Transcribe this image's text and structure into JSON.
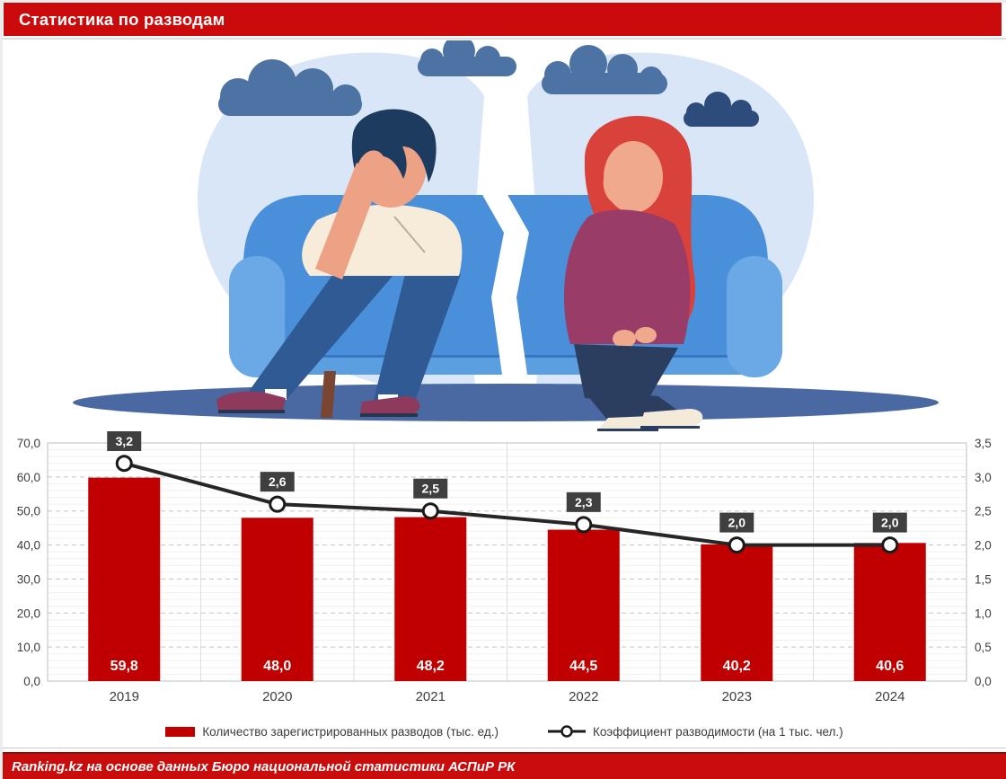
{
  "header": {
    "title": "Статистика по разводам"
  },
  "illustration": {
    "icons": [
      "broken-heart-icon",
      "cloud-icon",
      "couch-icon",
      "sad-man-icon",
      "sad-woman-icon"
    ]
  },
  "chart_data": {
    "type": "bar",
    "subtype": "combo-bar-line",
    "categories": [
      "2019",
      "2020",
      "2021",
      "2022",
      "2023",
      "2024"
    ],
    "series": [
      {
        "name": "Количество зарегистрированных разводов (тыс. ед.)",
        "type": "bar",
        "axis": "left",
        "values": [
          59.8,
          48.0,
          48.2,
          44.5,
          40.2,
          40.6
        ],
        "labels": [
          "59,8",
          "48,0",
          "48,2",
          "44,5",
          "40,2",
          "40,6"
        ],
        "color": "#c00000"
      },
      {
        "name": "Коэффициент разводимости (на 1 тыс. чел.)",
        "type": "line",
        "axis": "right",
        "values": [
          3.2,
          2.6,
          2.5,
          2.3,
          2.0,
          2.0
        ],
        "labels": [
          "3,2",
          "2,6",
          "2,5",
          "2,3",
          "2,0",
          "2,0"
        ],
        "color": "#262626",
        "marker": "open-circle"
      }
    ],
    "left_axis": {
      "min": 0,
      "max": 70,
      "step": 10,
      "minor_step": 2,
      "tick_labels": [
        "0,0",
        "10,0",
        "20,0",
        "30,0",
        "40,0",
        "50,0",
        "60,0",
        "70,0"
      ]
    },
    "right_axis": {
      "min": 0,
      "max": 3.5,
      "step": 0.5,
      "tick_labels": [
        "0,0",
        "0,5",
        "1,0",
        "1,5",
        "2,0",
        "2,5",
        "3,0",
        "3,5"
      ]
    },
    "grid": true,
    "legend_position": "bottom",
    "label_box_color": "#3f3f3f"
  },
  "footer": {
    "source": "Ranking.kz на основе данных Бюро национальной статистики АСПиР РК"
  },
  "colors": {
    "accent_red": "#c90c0c",
    "bar_red": "#c00000",
    "line_dark": "#262626",
    "label_box": "#3f3f3f",
    "heart_blue": "#d9e6f7",
    "couch_blue": "#4a8fd9"
  }
}
